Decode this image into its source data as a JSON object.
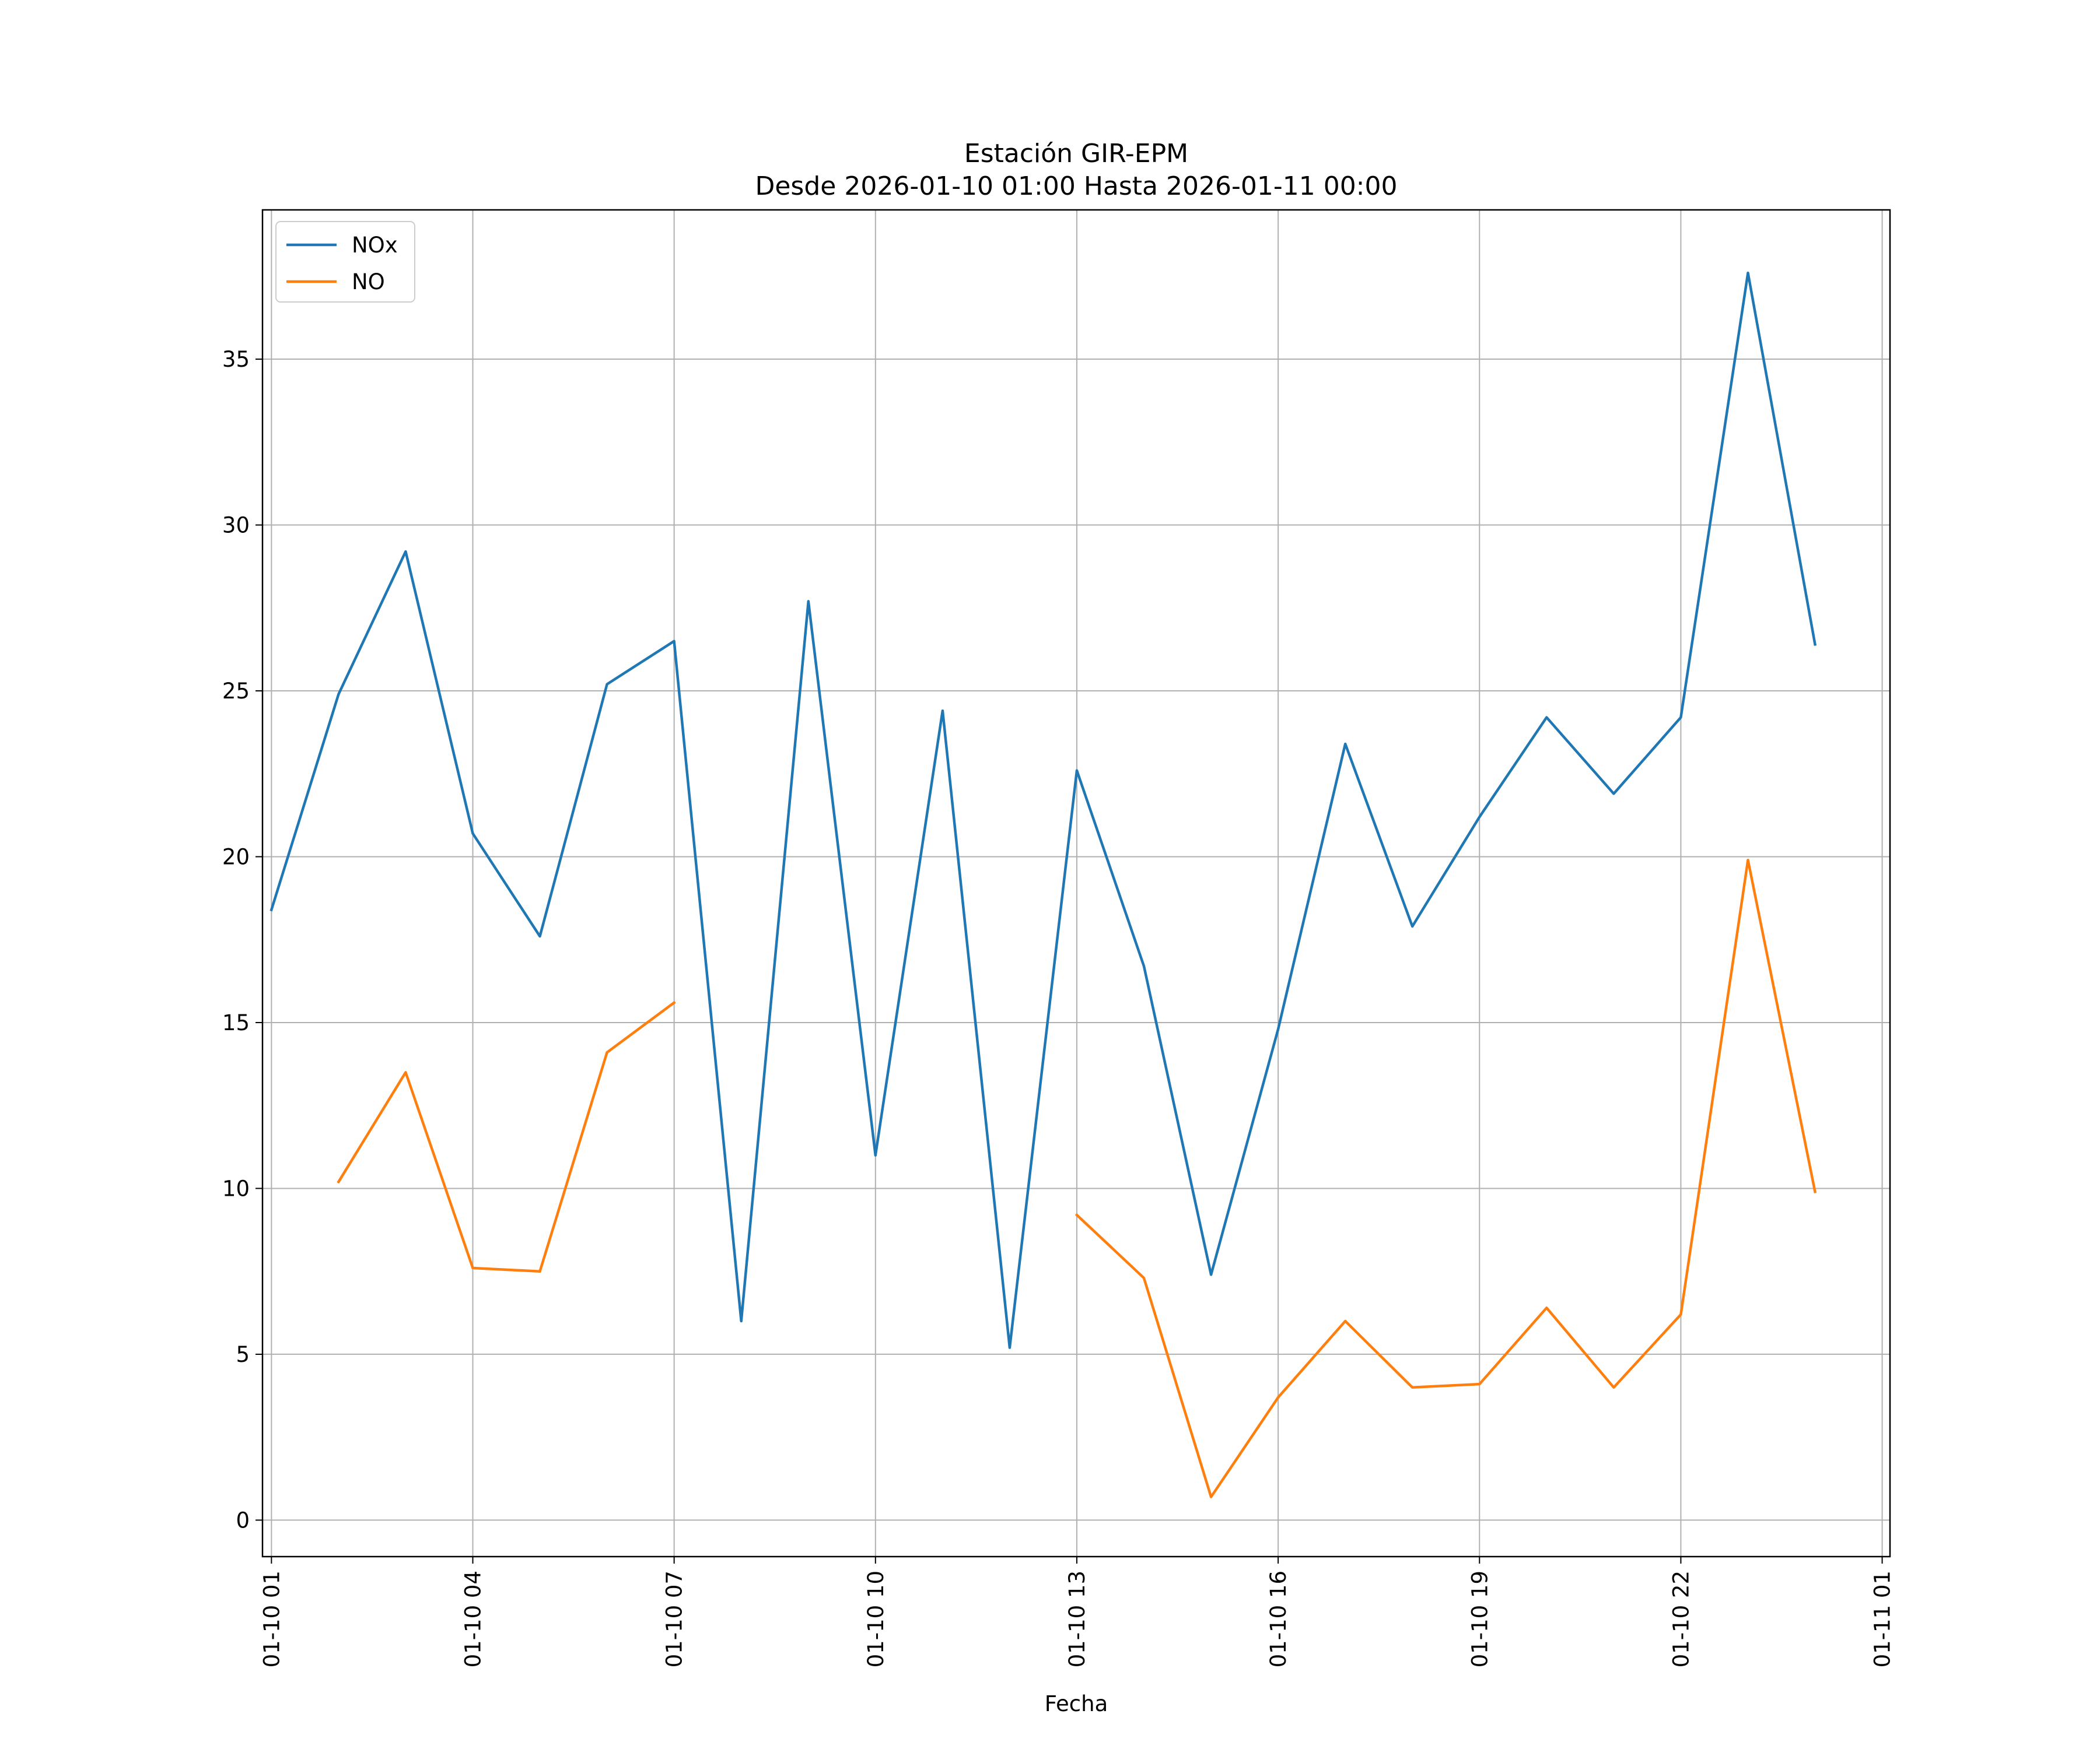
{
  "chart_data": {
    "type": "line",
    "title": "Estación GIR-EPM",
    "subtitle": "Desde 2026-01-10 01:00 Hasta 2026-01-11 00:00",
    "xlabel": "Fecha",
    "ylabel": "",
    "x": [
      "01-10 01",
      "01-10 02",
      "01-10 03",
      "01-10 04",
      "01-10 05",
      "01-10 06",
      "01-10 07",
      "01-10 08",
      "01-10 09",
      "01-10 10",
      "01-10 11",
      "01-10 12",
      "01-10 13",
      "01-10 14",
      "01-10 15",
      "01-10 16",
      "01-10 17",
      "01-10 18",
      "01-10 19",
      "01-10 20",
      "01-10 21",
      "01-10 22",
      "01-10 23",
      "01-11 00"
    ],
    "x_ticks": [
      "01-10 01",
      "01-10 04",
      "01-10 07",
      "01-10 10",
      "01-10 13",
      "01-10 16",
      "01-10 19",
      "01-10 22",
      "01-11 01"
    ],
    "y_ticks": [
      0,
      5,
      10,
      15,
      20,
      25,
      30,
      35
    ],
    "xlim": [
      "01-10 00:52",
      "01-11 01:07"
    ],
    "ylim": [
      -1.1,
      39.5
    ],
    "grid": true,
    "legend_position": "top-left",
    "series": [
      {
        "name": "NOx",
        "color": "#1f77b4",
        "values": [
          18.4,
          24.9,
          29.2,
          20.7,
          17.6,
          25.2,
          26.5,
          6.0,
          27.7,
          11.0,
          24.4,
          5.2,
          22.6,
          16.7,
          7.4,
          14.8,
          23.4,
          17.9,
          21.2,
          24.2,
          21.9,
          24.2,
          37.6,
          26.4
        ]
      },
      {
        "name": "NO",
        "color": "#ff7f0e",
        "values": [
          null,
          10.2,
          13.5,
          7.6,
          7.5,
          14.1,
          15.6,
          null,
          null,
          null,
          null,
          null,
          9.2,
          7.3,
          0.7,
          3.7,
          6.0,
          4.0,
          4.1,
          6.4,
          4.0,
          6.2,
          19.9,
          9.9
        ]
      }
    ]
  }
}
